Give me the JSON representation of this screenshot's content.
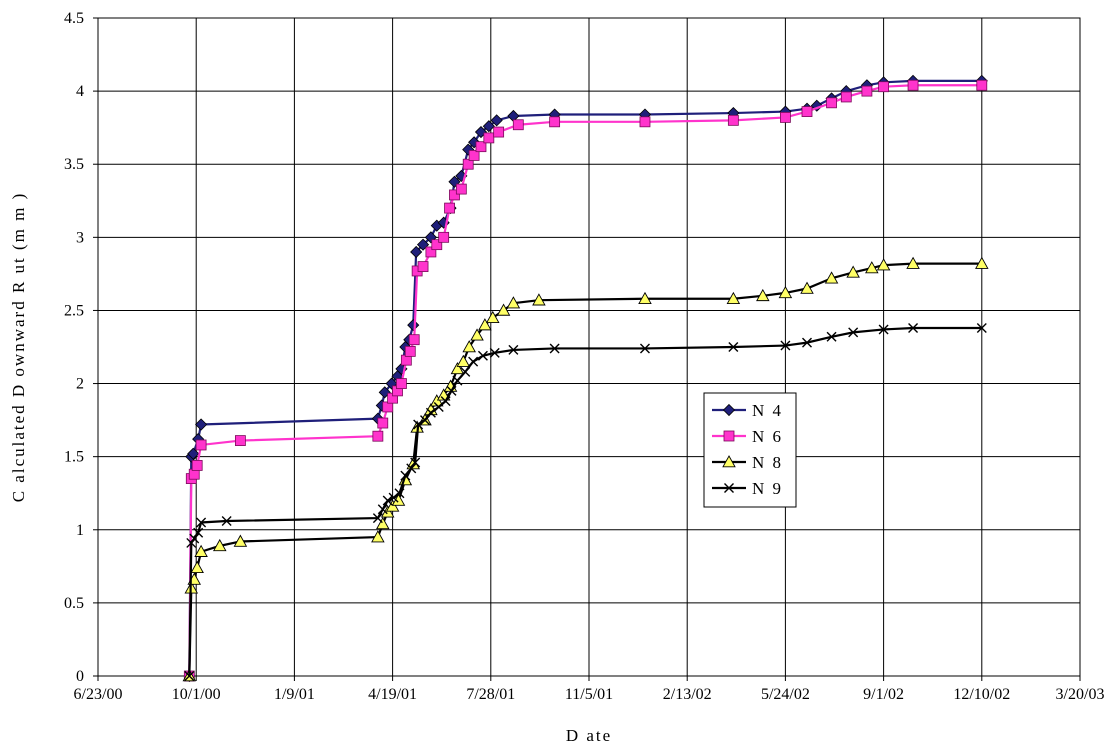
{
  "chart_data": {
    "type": "line",
    "title": "",
    "xlabel": "D ate",
    "ylabel": "C alculated D ownward R ut (m m )",
    "x_tick_labels": [
      "6/23/00",
      "10/1/00",
      "1/9/01",
      "4/19/01",
      "7/28/01",
      "11/5/01",
      "2/13/02",
      "5/24/02",
      "9/1/02",
      "12/10/02",
      "3/20/03"
    ],
    "y_tick_labels": [
      "0",
      "0.5",
      "1",
      "1.5",
      "2",
      "2.5",
      "3",
      "3.5",
      "4",
      "4.5"
    ],
    "xlim": [
      "2000-06-23",
      "2003-03-20"
    ],
    "ylim": [
      0,
      4.5
    ],
    "grid": true,
    "legend_position": "center-right",
    "series": [
      {
        "name": "N 4",
        "color": "#1f1f7a",
        "marker": "diamond",
        "points": [
          [
            "2000-09-24",
            0
          ],
          [
            "2000-09-26",
            1.5
          ],
          [
            "2000-09-28",
            1.52
          ],
          [
            "2000-10-03",
            1.62
          ],
          [
            "2000-10-06",
            1.72
          ],
          [
            "2001-04-04",
            1.76
          ],
          [
            "2001-04-08",
            1.85
          ],
          [
            "2001-04-11",
            1.94
          ],
          [
            "2001-04-18",
            2.0
          ],
          [
            "2001-04-24",
            2.05
          ],
          [
            "2001-04-28",
            2.1
          ],
          [
            "2001-05-02",
            2.25
          ],
          [
            "2001-05-06",
            2.3
          ],
          [
            "2001-05-10",
            2.4
          ],
          [
            "2001-05-13",
            2.9
          ],
          [
            "2001-05-20",
            2.95
          ],
          [
            "2001-05-28",
            3.0
          ],
          [
            "2001-06-03",
            3.08
          ],
          [
            "2001-06-10",
            3.1
          ],
          [
            "2001-06-17",
            3.2
          ],
          [
            "2001-06-21",
            3.38
          ],
          [
            "2001-06-28",
            3.42
          ],
          [
            "2001-07-05",
            3.6
          ],
          [
            "2001-07-11",
            3.65
          ],
          [
            "2001-07-18",
            3.72
          ],
          [
            "2001-07-26",
            3.76
          ],
          [
            "2001-08-03",
            3.8
          ],
          [
            "2001-08-20",
            3.83
          ],
          [
            "2001-10-01",
            3.84
          ],
          [
            "2002-01-01",
            3.84
          ],
          [
            "2002-04-01",
            3.85
          ],
          [
            "2002-05-24",
            3.86
          ],
          [
            "2002-06-15",
            3.88
          ],
          [
            "2002-06-25",
            3.9
          ],
          [
            "2002-07-10",
            3.95
          ],
          [
            "2002-07-25",
            4.0
          ],
          [
            "2002-08-15",
            4.04
          ],
          [
            "2002-09-01",
            4.06
          ],
          [
            "2002-10-01",
            4.07
          ],
          [
            "2002-12-10",
            4.07
          ]
        ]
      },
      {
        "name": "N 6",
        "color": "#ff33cc",
        "marker": "square",
        "points": [
          [
            "2000-09-24",
            0
          ],
          [
            "2000-09-26",
            1.35
          ],
          [
            "2000-09-29",
            1.38
          ],
          [
            "2000-10-02",
            1.44
          ],
          [
            "2000-10-06",
            1.58
          ],
          [
            "2000-11-15",
            1.61
          ],
          [
            "2001-04-04",
            1.64
          ],
          [
            "2001-04-09",
            1.73
          ],
          [
            "2001-04-14",
            1.84
          ],
          [
            "2001-04-19",
            1.9
          ],
          [
            "2001-04-24",
            1.95
          ],
          [
            "2001-04-28",
            2.0
          ],
          [
            "2001-05-03",
            2.16
          ],
          [
            "2001-05-07",
            2.22
          ],
          [
            "2001-05-11",
            2.3
          ],
          [
            "2001-05-14",
            2.77
          ],
          [
            "2001-05-20",
            2.8
          ],
          [
            "2001-05-28",
            2.9
          ],
          [
            "2001-06-03",
            2.95
          ],
          [
            "2001-06-10",
            3.0
          ],
          [
            "2001-06-16",
            3.2
          ],
          [
            "2001-06-21",
            3.29
          ],
          [
            "2001-06-28",
            3.33
          ],
          [
            "2001-07-05",
            3.5
          ],
          [
            "2001-07-11",
            3.56
          ],
          [
            "2001-07-18",
            3.62
          ],
          [
            "2001-07-26",
            3.68
          ],
          [
            "2001-08-05",
            3.72
          ],
          [
            "2001-08-25",
            3.77
          ],
          [
            "2001-10-01",
            3.79
          ],
          [
            "2002-01-01",
            3.79
          ],
          [
            "2002-04-01",
            3.8
          ],
          [
            "2002-05-24",
            3.82
          ],
          [
            "2002-06-15",
            3.86
          ],
          [
            "2002-07-10",
            3.92
          ],
          [
            "2002-07-25",
            3.96
          ],
          [
            "2002-08-15",
            4.0
          ],
          [
            "2002-09-01",
            4.03
          ],
          [
            "2002-10-01",
            4.04
          ],
          [
            "2002-12-10",
            4.04
          ]
        ]
      },
      {
        "name": "N 8",
        "color": "#000000",
        "marker_fill": "#ffff66",
        "marker": "triangle",
        "points": [
          [
            "2000-09-24",
            0
          ],
          [
            "2000-09-26",
            0.6
          ],
          [
            "2000-09-29",
            0.66
          ],
          [
            "2000-10-02",
            0.74
          ],
          [
            "2000-10-06",
            0.85
          ],
          [
            "2000-10-25",
            0.89
          ],
          [
            "2000-11-15",
            0.92
          ],
          [
            "2001-04-04",
            0.95
          ],
          [
            "2001-04-09",
            1.04
          ],
          [
            "2001-04-14",
            1.12
          ],
          [
            "2001-04-19",
            1.16
          ],
          [
            "2001-04-25",
            1.2
          ],
          [
            "2001-05-02",
            1.34
          ],
          [
            "2001-05-10",
            1.45
          ],
          [
            "2001-05-14",
            1.7
          ],
          [
            "2001-05-22",
            1.75
          ],
          [
            "2001-05-28",
            1.82
          ],
          [
            "2001-06-03",
            1.88
          ],
          [
            "2001-06-10",
            1.92
          ],
          [
            "2001-06-17",
            1.98
          ],
          [
            "2001-06-24",
            2.1
          ],
          [
            "2001-06-30",
            2.15
          ],
          [
            "2001-07-06",
            2.25
          ],
          [
            "2001-07-14",
            2.33
          ],
          [
            "2001-07-22",
            2.4
          ],
          [
            "2001-07-30",
            2.45
          ],
          [
            "2001-08-10",
            2.5
          ],
          [
            "2001-08-20",
            2.55
          ],
          [
            "2001-09-15",
            2.57
          ],
          [
            "2002-01-01",
            2.58
          ],
          [
            "2002-04-01",
            2.58
          ],
          [
            "2002-05-01",
            2.6
          ],
          [
            "2002-05-24",
            2.62
          ],
          [
            "2002-06-15",
            2.65
          ],
          [
            "2002-07-10",
            2.72
          ],
          [
            "2002-08-01",
            2.76
          ],
          [
            "2002-08-20",
            2.79
          ],
          [
            "2002-09-01",
            2.81
          ],
          [
            "2002-10-01",
            2.82
          ],
          [
            "2002-12-10",
            2.82
          ]
        ]
      },
      {
        "name": "N 9",
        "color": "#000000",
        "marker": "x",
        "points": [
          [
            "2000-09-24",
            0
          ],
          [
            "2000-09-26",
            0.91
          ],
          [
            "2000-09-29",
            0.94
          ],
          [
            "2000-10-03",
            0.98
          ],
          [
            "2000-10-06",
            1.05
          ],
          [
            "2000-11-01",
            1.06
          ],
          [
            "2001-04-04",
            1.08
          ],
          [
            "2001-04-09",
            1.14
          ],
          [
            "2001-04-14",
            1.2
          ],
          [
            "2001-04-20",
            1.22
          ],
          [
            "2001-04-26",
            1.25
          ],
          [
            "2001-05-02",
            1.37
          ],
          [
            "2001-05-08",
            1.42
          ],
          [
            "2001-05-12",
            1.46
          ],
          [
            "2001-05-15",
            1.72
          ],
          [
            "2001-05-22",
            1.75
          ],
          [
            "2001-05-28",
            1.8
          ],
          [
            "2001-06-05",
            1.84
          ],
          [
            "2001-06-12",
            1.88
          ],
          [
            "2001-06-18",
            1.95
          ],
          [
            "2001-06-24",
            2.02
          ],
          [
            "2001-07-02",
            2.08
          ],
          [
            "2001-07-10",
            2.15
          ],
          [
            "2001-07-20",
            2.19
          ],
          [
            "2001-08-01",
            2.21
          ],
          [
            "2001-08-20",
            2.23
          ],
          [
            "2001-10-01",
            2.24
          ],
          [
            "2002-01-01",
            2.24
          ],
          [
            "2002-04-01",
            2.25
          ],
          [
            "2002-05-24",
            2.26
          ],
          [
            "2002-06-15",
            2.28
          ],
          [
            "2002-07-10",
            2.32
          ],
          [
            "2002-08-01",
            2.35
          ],
          [
            "2002-09-01",
            2.37
          ],
          [
            "2002-10-01",
            2.38
          ],
          [
            "2002-12-10",
            2.38
          ]
        ]
      }
    ]
  }
}
